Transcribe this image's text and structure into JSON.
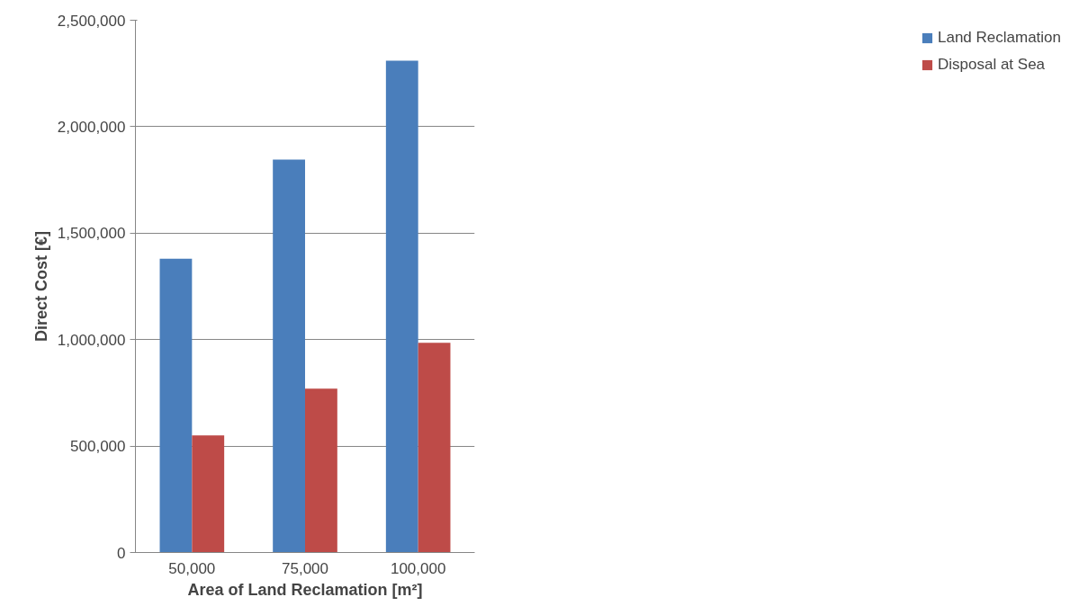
{
  "chart_data": {
    "type": "bar",
    "xlabel": "Area of Land Reclamation [m²]",
    "ylabel": "Direct Cost [€]",
    "categories": [
      "50,000",
      "75,000",
      "100,000"
    ],
    "series": [
      {
        "name": "Land Reclamation",
        "color": "#4a7ebb",
        "values": [
          1380000,
          1845000,
          2310000
        ]
      },
      {
        "name": "Disposal at Sea",
        "color": "#be4b48",
        "values": [
          550000,
          770000,
          985000
        ]
      }
    ],
    "ylim": [
      0,
      2500000
    ],
    "yticks": [
      0,
      {
        "value": 500000,
        "label": "500,000"
      },
      {
        "value": 1000000,
        "label": "1,000,000"
      },
      {
        "value": 1500000,
        "label": "1,500,000"
      },
      {
        "value": 2000000,
        "label": "2,000,000"
      },
      {
        "value": 2500000,
        "label": "2,500,000"
      }
    ],
    "grid": "y",
    "legend": "right"
  }
}
